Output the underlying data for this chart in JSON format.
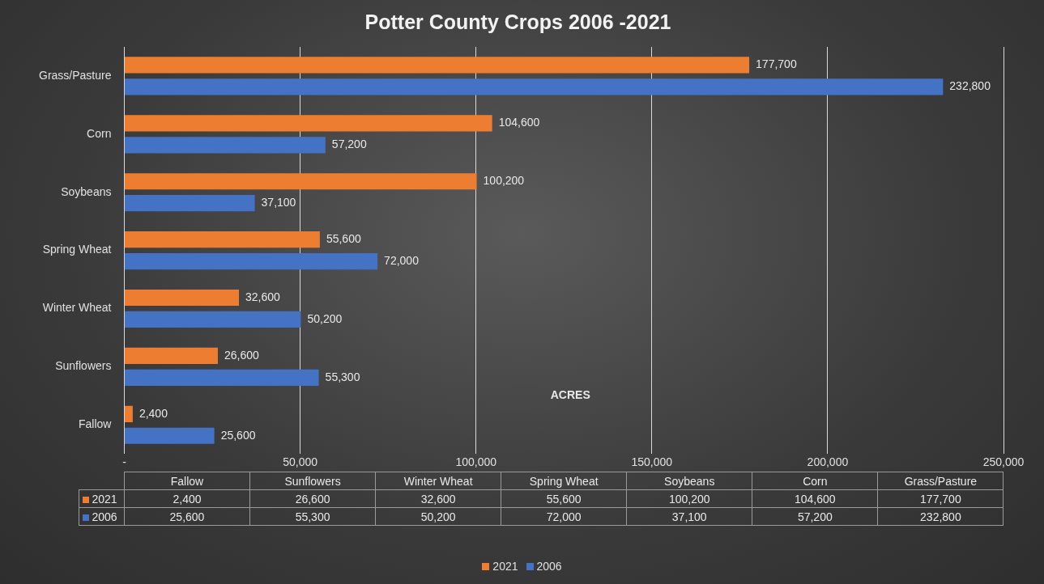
{
  "chart_data": {
    "type": "bar",
    "orientation": "horizontal",
    "title": "Potter County Crops 2006 -2021",
    "xlabel": "ACRES",
    "categories": [
      "Grass/Pasture",
      "Corn",
      "Soybeans",
      "Spring Wheat",
      "Winter Wheat",
      "Sunflowers",
      "Fallow"
    ],
    "series": [
      {
        "name": "2021",
        "color": "#ed7d31",
        "values": [
          177700,
          104600,
          100200,
          55600,
          32600,
          26600,
          2400
        ],
        "value_labels": [
          "177,700",
          "104,600",
          "100,200",
          "55,600",
          "32,600",
          "26,600",
          "2,400"
        ]
      },
      {
        "name": "2006",
        "color": "#4472c4",
        "values": [
          232800,
          57200,
          37100,
          72000,
          50200,
          55300,
          25600
        ],
        "value_labels": [
          "232,800",
          "57,200",
          "37,100",
          "72,000",
          "50,200",
          "55,300",
          "25,600"
        ]
      }
    ],
    "xlim": [
      0,
      250000
    ],
    "xticks": [
      {
        "value": 0,
        "label": "-"
      },
      {
        "value": 50000,
        "label": "50,000"
      },
      {
        "value": 100000,
        "label": "100,000"
      },
      {
        "value": 150000,
        "label": "150,000"
      },
      {
        "value": 200000,
        "label": "200,000"
      },
      {
        "value": 250000,
        "label": "250,000"
      }
    ],
    "grid": "x",
    "legend": "bottom"
  }
}
